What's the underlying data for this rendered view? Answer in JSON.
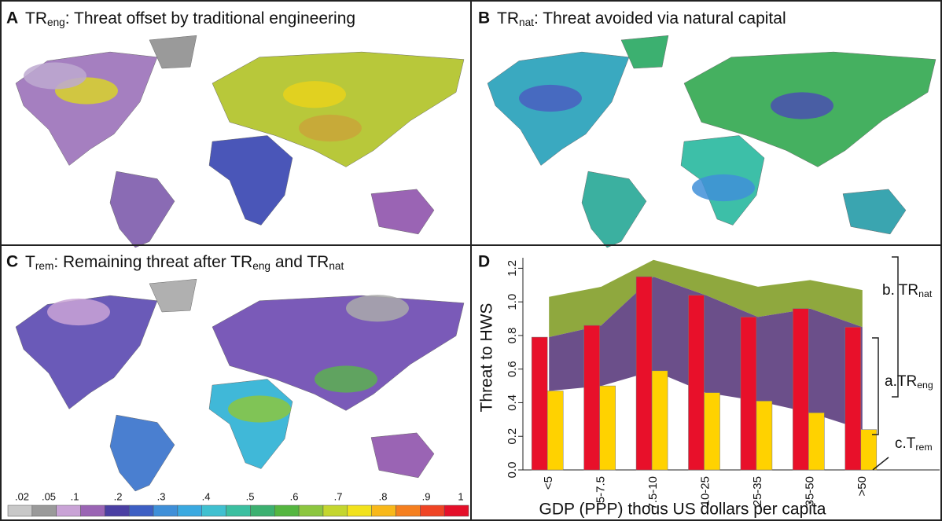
{
  "panels": [
    {
      "letter": "A",
      "title_parts": [
        "TR",
        "eng",
        ": Threat offset by traditional engineering"
      ]
    },
    {
      "letter": "B",
      "title_parts": [
        "TR",
        "nat",
        ": Threat avoided via natural capital"
      ]
    },
    {
      "letter": "C",
      "title_parts": [
        "T",
        "rem",
        ": Remaining threat after TR",
        "eng",
        " and TR",
        "nat"
      ]
    }
  ],
  "colorbar": {
    "colors": [
      "#c8c8c8",
      "#9a9a9a",
      "#c9a3d6",
      "#9a64b4",
      "#4a3fa3",
      "#3d5fc4",
      "#3f8fd8",
      "#3aa9e0",
      "#40c0d0",
      "#3bbfa0",
      "#3cb070",
      "#55b640",
      "#8cc63f",
      "#c4d62f",
      "#f2e21c",
      "#f8b81a",
      "#f57f1f",
      "#ef4424",
      "#e4102a"
    ],
    "ticks": [
      {
        "value": 0.02,
        "label": ".02"
      },
      {
        "value": 0.05,
        "label": ".05"
      },
      {
        "value": 0.1,
        "label": ".1"
      },
      {
        "value": 0.2,
        "label": ".2"
      },
      {
        "value": 0.3,
        "label": ".3"
      },
      {
        "value": 0.4,
        "label": ".4"
      },
      {
        "value": 0.5,
        "label": ".5"
      },
      {
        "value": 0.6,
        "label": ".6"
      },
      {
        "value": 0.7,
        "label": ".7"
      },
      {
        "value": 0.8,
        "label": ".8"
      },
      {
        "value": 0.9,
        "label": ".9"
      },
      1
    ]
  },
  "chart_data": {
    "type": "bar",
    "panel": "D",
    "categories": [
      "<5",
      "5-7.5",
      "7.5-10",
      "10-25",
      "25-35",
      "35-50",
      ">50"
    ],
    "series": [
      {
        "kind": "area",
        "color": "#8fa83e",
        "values": [
          1.03,
          1.09,
          1.25,
          1.17,
          1.09,
          1.13,
          1.07
        ]
      },
      {
        "kind": "bar",
        "color": "#e8102a",
        "values": [
          0.79,
          0.86,
          1.15,
          1.04,
          0.91,
          0.96,
          0.85
        ],
        "area_color": "#6b4f8a"
      },
      {
        "kind": "bar",
        "color": "#ffd200",
        "values": [
          0.47,
          0.5,
          0.59,
          0.46,
          0.41,
          0.34,
          0.24
        ]
      }
    ],
    "ylim": [
      0,
      1.3
    ],
    "yticks": [
      {
        "value": 0,
        "label": "0.0"
      },
      0.2,
      0.4,
      0.6,
      0.8,
      {
        "value": 1,
        "label": "1.0"
      },
      1.2
    ],
    "y_label": "Threat to HWS",
    "x_label": "GDP (PPP) thous US dollars per capita",
    "annotations": [
      {
        "parts": [
          "b. TR",
          "nat"
        ]
      },
      {
        "parts": [
          "a.TR",
          "eng"
        ]
      },
      {
        "parts": [
          "c.T",
          "rem"
        ]
      }
    ]
  }
}
